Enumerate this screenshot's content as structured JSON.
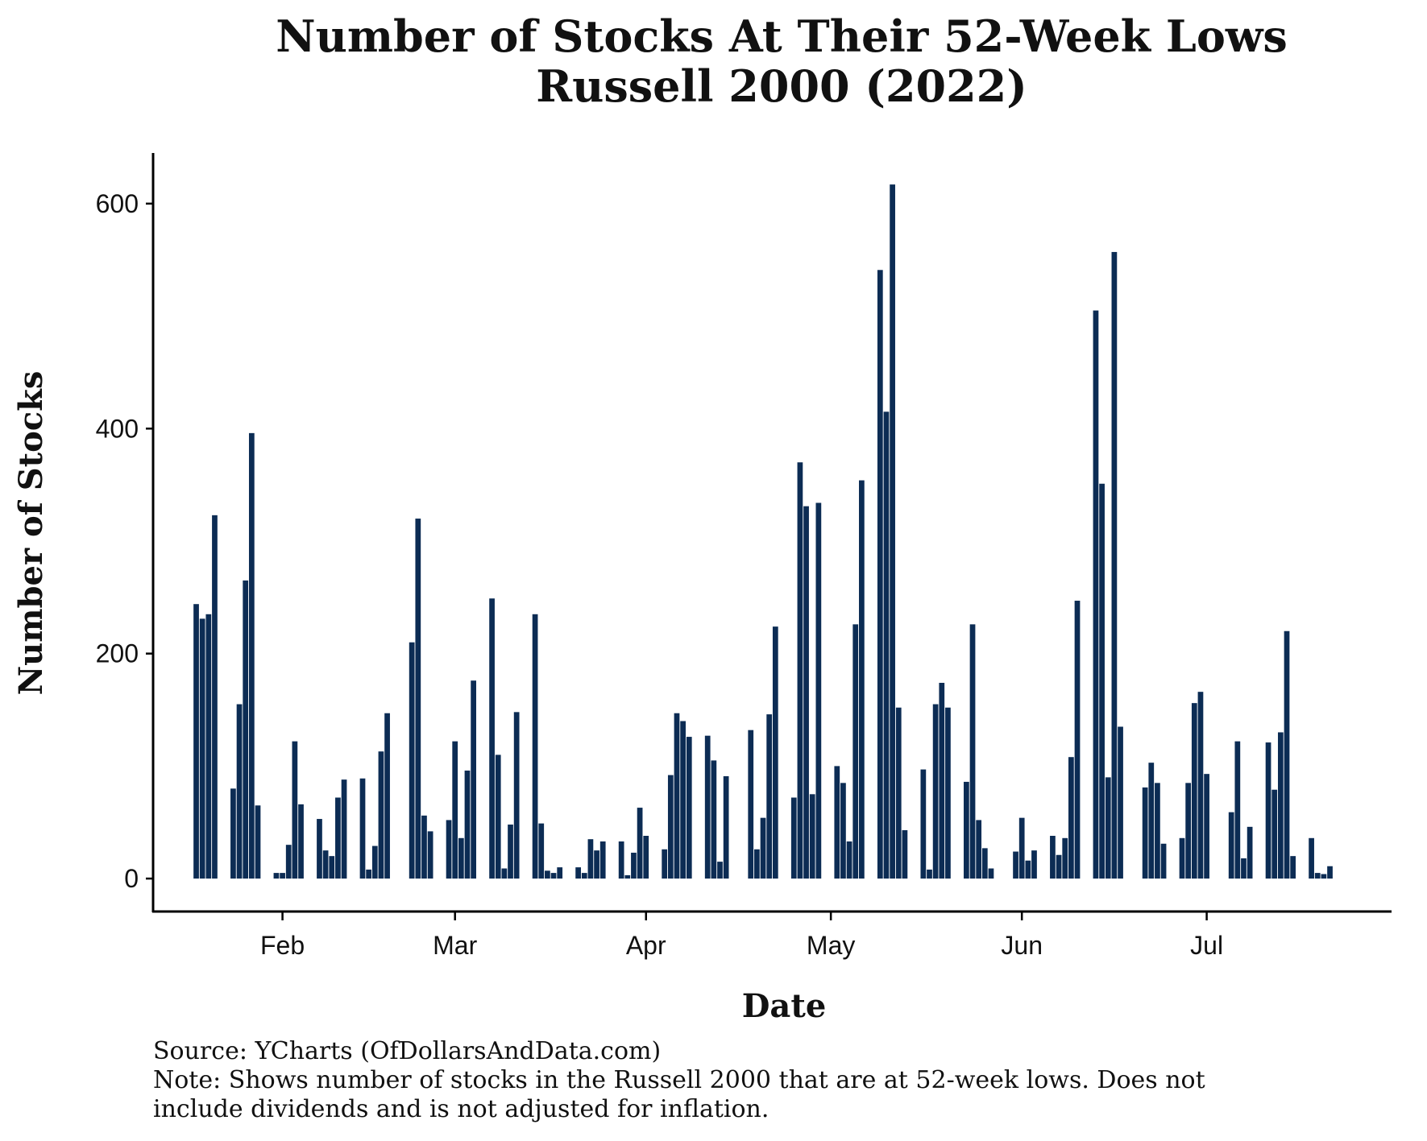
{
  "title_line1": "Number of Stocks At Their 52-Week Lows",
  "title_line2": "Russell 2000 (2022)",
  "source": "Source: YCharts (OfDollarsAndData.com)",
  "note_line1": "Note: Shows number of stocks in the Russell 2000 that are at 52-week lows. Does not",
  "note_line2": "include dividends and is not adjusted for inflation.",
  "chart_data": {
    "type": "bar",
    "title": "Number of Stocks At Their 52-Week Lows Russell 2000 (2022)",
    "xlabel": "Date",
    "ylabel": "Number of Stocks",
    "ylim": [
      -30,
      645
    ],
    "yticks": [
      0,
      200,
      400,
      600
    ],
    "xlim": [
      "2022-01-11",
      "2022-07-31"
    ],
    "xticks": [
      {
        "date": "2022-02-01",
        "label": "Feb"
      },
      {
        "date": "2022-03-01",
        "label": "Mar"
      },
      {
        "date": "2022-04-01",
        "label": "Apr"
      },
      {
        "date": "2022-05-01",
        "label": "May"
      },
      {
        "date": "2022-06-01",
        "label": "Jun"
      },
      {
        "date": "2022-07-01",
        "label": "Jul"
      }
    ],
    "bar_color": "#0c2c54",
    "grid": false,
    "x": [
      "2022-01-18",
      "2022-01-19",
      "2022-01-20",
      "2022-01-21",
      "2022-01-24",
      "2022-01-25",
      "2022-01-26",
      "2022-01-27",
      "2022-01-28",
      "2022-01-31",
      "2022-02-01",
      "2022-02-02",
      "2022-02-03",
      "2022-02-04",
      "2022-02-07",
      "2022-02-08",
      "2022-02-09",
      "2022-02-10",
      "2022-02-11",
      "2022-02-14",
      "2022-02-15",
      "2022-02-16",
      "2022-02-17",
      "2022-02-18",
      "2022-02-22",
      "2022-02-23",
      "2022-02-24",
      "2022-02-25",
      "2022-02-28",
      "2022-03-01",
      "2022-03-02",
      "2022-03-03",
      "2022-03-04",
      "2022-03-07",
      "2022-03-08",
      "2022-03-09",
      "2022-03-10",
      "2022-03-11",
      "2022-03-14",
      "2022-03-15",
      "2022-03-16",
      "2022-03-17",
      "2022-03-18",
      "2022-03-21",
      "2022-03-22",
      "2022-03-23",
      "2022-03-24",
      "2022-03-25",
      "2022-03-28",
      "2022-03-29",
      "2022-03-30",
      "2022-03-31",
      "2022-04-01",
      "2022-04-04",
      "2022-04-05",
      "2022-04-06",
      "2022-04-07",
      "2022-04-08",
      "2022-04-11",
      "2022-04-12",
      "2022-04-13",
      "2022-04-14",
      "2022-04-18",
      "2022-04-19",
      "2022-04-20",
      "2022-04-21",
      "2022-04-22",
      "2022-04-25",
      "2022-04-26",
      "2022-04-27",
      "2022-04-28",
      "2022-04-29",
      "2022-05-02",
      "2022-05-03",
      "2022-05-04",
      "2022-05-05",
      "2022-05-06",
      "2022-05-09",
      "2022-05-10",
      "2022-05-11",
      "2022-05-12",
      "2022-05-13",
      "2022-05-16",
      "2022-05-17",
      "2022-05-18",
      "2022-05-19",
      "2022-05-20",
      "2022-05-23",
      "2022-05-24",
      "2022-05-25",
      "2022-05-26",
      "2022-05-27",
      "2022-05-31",
      "2022-06-01",
      "2022-06-02",
      "2022-06-03",
      "2022-06-06",
      "2022-06-07",
      "2022-06-08",
      "2022-06-09",
      "2022-06-10",
      "2022-06-13",
      "2022-06-14",
      "2022-06-15",
      "2022-06-16",
      "2022-06-17",
      "2022-06-21",
      "2022-06-22",
      "2022-06-23",
      "2022-06-24",
      "2022-06-27",
      "2022-06-28",
      "2022-06-29",
      "2022-06-30",
      "2022-07-01",
      "2022-07-05",
      "2022-07-06",
      "2022-07-07",
      "2022-07-08",
      "2022-07-11",
      "2022-07-12",
      "2022-07-13",
      "2022-07-14",
      "2022-07-15",
      "2022-07-18",
      "2022-07-19",
      "2022-07-20",
      "2022-07-21",
      "2022-07-22"
    ],
    "values": [
      244,
      231,
      235,
      323,
      80,
      155,
      265,
      396,
      65,
      5,
      5,
      30,
      122,
      66,
      53,
      25,
      20,
      72,
      88,
      89,
      8,
      29,
      113,
      147,
      210,
      320,
      56,
      42,
      52,
      122,
      36,
      96,
      176,
      249,
      110,
      9,
      48,
      148,
      235,
      49,
      7,
      5,
      10,
      10,
      5,
      35,
      25,
      33,
      33,
      3,
      23,
      63,
      38,
      26,
      92,
      147,
      140,
      126,
      127,
      105,
      15,
      91,
      132,
      26,
      54,
      146,
      224,
      72,
      370,
      331,
      75,
      334,
      100,
      85,
      33,
      226,
      354,
      541,
      415,
      617,
      152,
      43,
      97,
      8,
      155,
      174,
      152,
      86,
      226,
      52,
      27,
      9,
      24,
      54,
      16,
      25,
      38,
      21,
      36,
      108,
      247,
      505,
      351,
      90,
      557,
      135,
      81,
      103,
      85,
      31,
      36,
      85,
      156,
      166,
      93,
      59,
      122,
      18,
      46,
      121,
      79,
      130,
      220,
      20,
      36,
      5,
      4,
      11,
      0
    ]
  }
}
